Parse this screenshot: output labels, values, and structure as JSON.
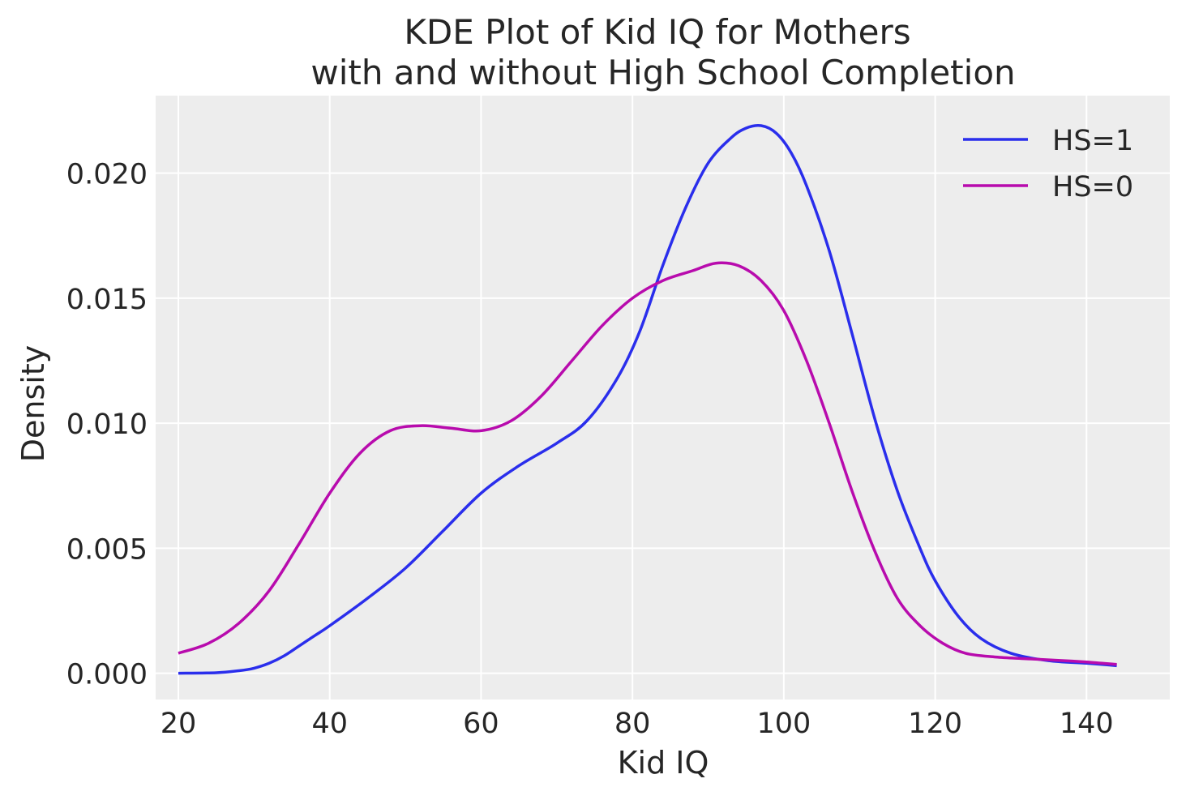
{
  "chart_data": {
    "type": "line",
    "title_line1": "KDE Plot of Kid IQ for Mothers",
    "title_line2": "with and without High School Completion",
    "xlabel": "Kid IQ",
    "ylabel": "Density",
    "xlim": [
      17,
      151
    ],
    "ylim": [
      -0.00105,
      0.0231
    ],
    "xticks": [
      20,
      40,
      60,
      80,
      100,
      120,
      140
    ],
    "xtick_labels": [
      "20",
      "40",
      "60",
      "80",
      "100",
      "120",
      "140"
    ],
    "yticks": [
      0.0,
      0.005,
      0.01,
      0.015,
      0.02
    ],
    "ytick_labels": [
      "0.000",
      "0.005",
      "0.010",
      "0.015",
      "0.020"
    ],
    "grid": true,
    "legend_position": "top-right",
    "background_color": "#ededed",
    "series": [
      {
        "name": "HS=1",
        "color": "#2a2eec",
        "points": [
          [
            20,
            0.0
          ],
          [
            25,
            2e-05
          ],
          [
            28,
            0.0001
          ],
          [
            30,
            0.0002
          ],
          [
            32,
            0.0004
          ],
          [
            34,
            0.0007
          ],
          [
            36,
            0.0011
          ],
          [
            38,
            0.0015
          ],
          [
            40,
            0.0019
          ],
          [
            45,
            0.003
          ],
          [
            50,
            0.0042
          ],
          [
            55,
            0.0057
          ],
          [
            60,
            0.0072
          ],
          [
            65,
            0.0083
          ],
          [
            70,
            0.0092
          ],
          [
            74,
            0.0101
          ],
          [
            78,
            0.0118
          ],
          [
            81,
            0.0137
          ],
          [
            84,
            0.0163
          ],
          [
            87,
            0.0186
          ],
          [
            90,
            0.0204
          ],
          [
            93,
            0.0214
          ],
          [
            95,
            0.0218
          ],
          [
            97,
            0.0219
          ],
          [
            99,
            0.0216
          ],
          [
            101,
            0.0208
          ],
          [
            103,
            0.0195
          ],
          [
            106,
            0.0169
          ],
          [
            109,
            0.0136
          ],
          [
            112,
            0.0102
          ],
          [
            115,
            0.0073
          ],
          [
            118,
            0.005
          ],
          [
            120,
            0.0037
          ],
          [
            123,
            0.0023
          ],
          [
            126,
            0.0014
          ],
          [
            130,
            0.0008
          ],
          [
            135,
            0.0005
          ],
          [
            140,
            0.0004
          ],
          [
            144,
            0.0003
          ]
        ]
      },
      {
        "name": "HS=0",
        "color": "#b80bad",
        "points": [
          [
            20,
            0.0008
          ],
          [
            24,
            0.0012
          ],
          [
            28,
            0.002
          ],
          [
            32,
            0.0033
          ],
          [
            36,
            0.0052
          ],
          [
            40,
            0.0072
          ],
          [
            44,
            0.0088
          ],
          [
            48,
            0.0097
          ],
          [
            52,
            0.0099
          ],
          [
            56,
            0.0098
          ],
          [
            60,
            0.0097
          ],
          [
            64,
            0.0101
          ],
          [
            68,
            0.0111
          ],
          [
            72,
            0.0125
          ],
          [
            76,
            0.0139
          ],
          [
            80,
            0.015
          ],
          [
            84,
            0.0157
          ],
          [
            88,
            0.0161
          ],
          [
            91,
            0.0164
          ],
          [
            94,
            0.0163
          ],
          [
            97,
            0.0157
          ],
          [
            100,
            0.0145
          ],
          [
            103,
            0.0125
          ],
          [
            106,
            0.01
          ],
          [
            109,
            0.0073
          ],
          [
            112,
            0.0049
          ],
          [
            115,
            0.003
          ],
          [
            118,
            0.0019
          ],
          [
            121,
            0.0012
          ],
          [
            124,
            0.0008
          ],
          [
            128,
            0.00065
          ],
          [
            132,
            0.00058
          ],
          [
            136,
            0.00052
          ],
          [
            140,
            0.00045
          ],
          [
            144,
            0.00035
          ]
        ]
      }
    ]
  }
}
